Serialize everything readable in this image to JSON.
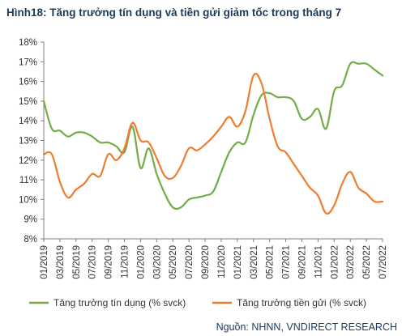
{
  "chart_data": {
    "type": "line",
    "title": "Hình18: Tăng  trưởng tín dụng và tiền gửi giảm tốc trong tháng 7",
    "source": "Nguồn: NHNN, VNDIRECT RESEARCH",
    "y_tick_labels": [
      "8%",
      "9%",
      "10%",
      "11%",
      "12%",
      "13%",
      "14%",
      "15%",
      "16%",
      "17%",
      "18%"
    ],
    "ylim": [
      8,
      18
    ],
    "y_unit": "%",
    "x_tick_labels": [
      "01/2019",
      "03/2019",
      "05/2019",
      "07/2019",
      "09/2019",
      "11/2019",
      "01/2020",
      "03/2020",
      "05/2020",
      "07/2020",
      "09/2020",
      "11/2020",
      "01/2021",
      "03/2021",
      "05/2021",
      "07/2021",
      "09/2021",
      "11/2021",
      "01/2022",
      "03/2022",
      "05/2022",
      "07/2022"
    ],
    "x": [
      "01/2019",
      "02/2019",
      "03/2019",
      "04/2019",
      "05/2019",
      "06/2019",
      "07/2019",
      "08/2019",
      "09/2019",
      "10/2019",
      "11/2019",
      "12/2019",
      "01/2020",
      "02/2020",
      "03/2020",
      "04/2020",
      "05/2020",
      "06/2020",
      "07/2020",
      "08/2020",
      "09/2020",
      "10/2020",
      "11/2020",
      "12/2020",
      "01/2021",
      "02/2021",
      "03/2021",
      "04/2021",
      "05/2021",
      "06/2021",
      "07/2021",
      "08/2021",
      "09/2021",
      "10/2021",
      "11/2021",
      "12/2021",
      "01/2022",
      "02/2022",
      "03/2022",
      "04/2022",
      "05/2022",
      "06/2022",
      "07/2022"
    ],
    "grid": false,
    "legend_position": "bottom",
    "series": [
      {
        "name": "Tăng trưởng tín dụng (% svck)",
        "color": "#70ad47",
        "values": [
          15.0,
          13.6,
          13.5,
          13.2,
          13.4,
          13.4,
          13.2,
          12.9,
          12.9,
          12.7,
          12.4,
          13.7,
          11.6,
          12.6,
          11.3,
          10.3,
          9.6,
          9.6,
          10.0,
          10.1,
          10.2,
          10.4,
          11.4,
          12.4,
          12.9,
          12.9,
          14.3,
          15.3,
          15.4,
          15.2,
          15.2,
          15.0,
          14.1,
          14.2,
          14.6,
          13.6,
          15.5,
          15.8,
          16.9,
          16.9,
          16.9,
          16.6,
          16.3
        ]
      },
      {
        "name": "Tăng trưởng tiền gửi (% svck)",
        "color": "#ed7d31",
        "values": [
          12.3,
          12.3,
          10.9,
          10.1,
          10.5,
          10.8,
          11.3,
          11.2,
          12.3,
          12.0,
          12.6,
          13.9,
          13.0,
          12.9,
          12.1,
          11.2,
          11.1,
          11.7,
          12.6,
          12.5,
          12.8,
          13.2,
          13.7,
          14.2,
          13.7,
          14.5,
          16.3,
          15.9,
          14.1,
          12.7,
          12.4,
          11.8,
          11.2,
          10.6,
          10.2,
          9.3,
          9.7,
          10.8,
          11.4,
          10.6,
          10.3,
          9.9,
          9.9
        ]
      }
    ]
  }
}
